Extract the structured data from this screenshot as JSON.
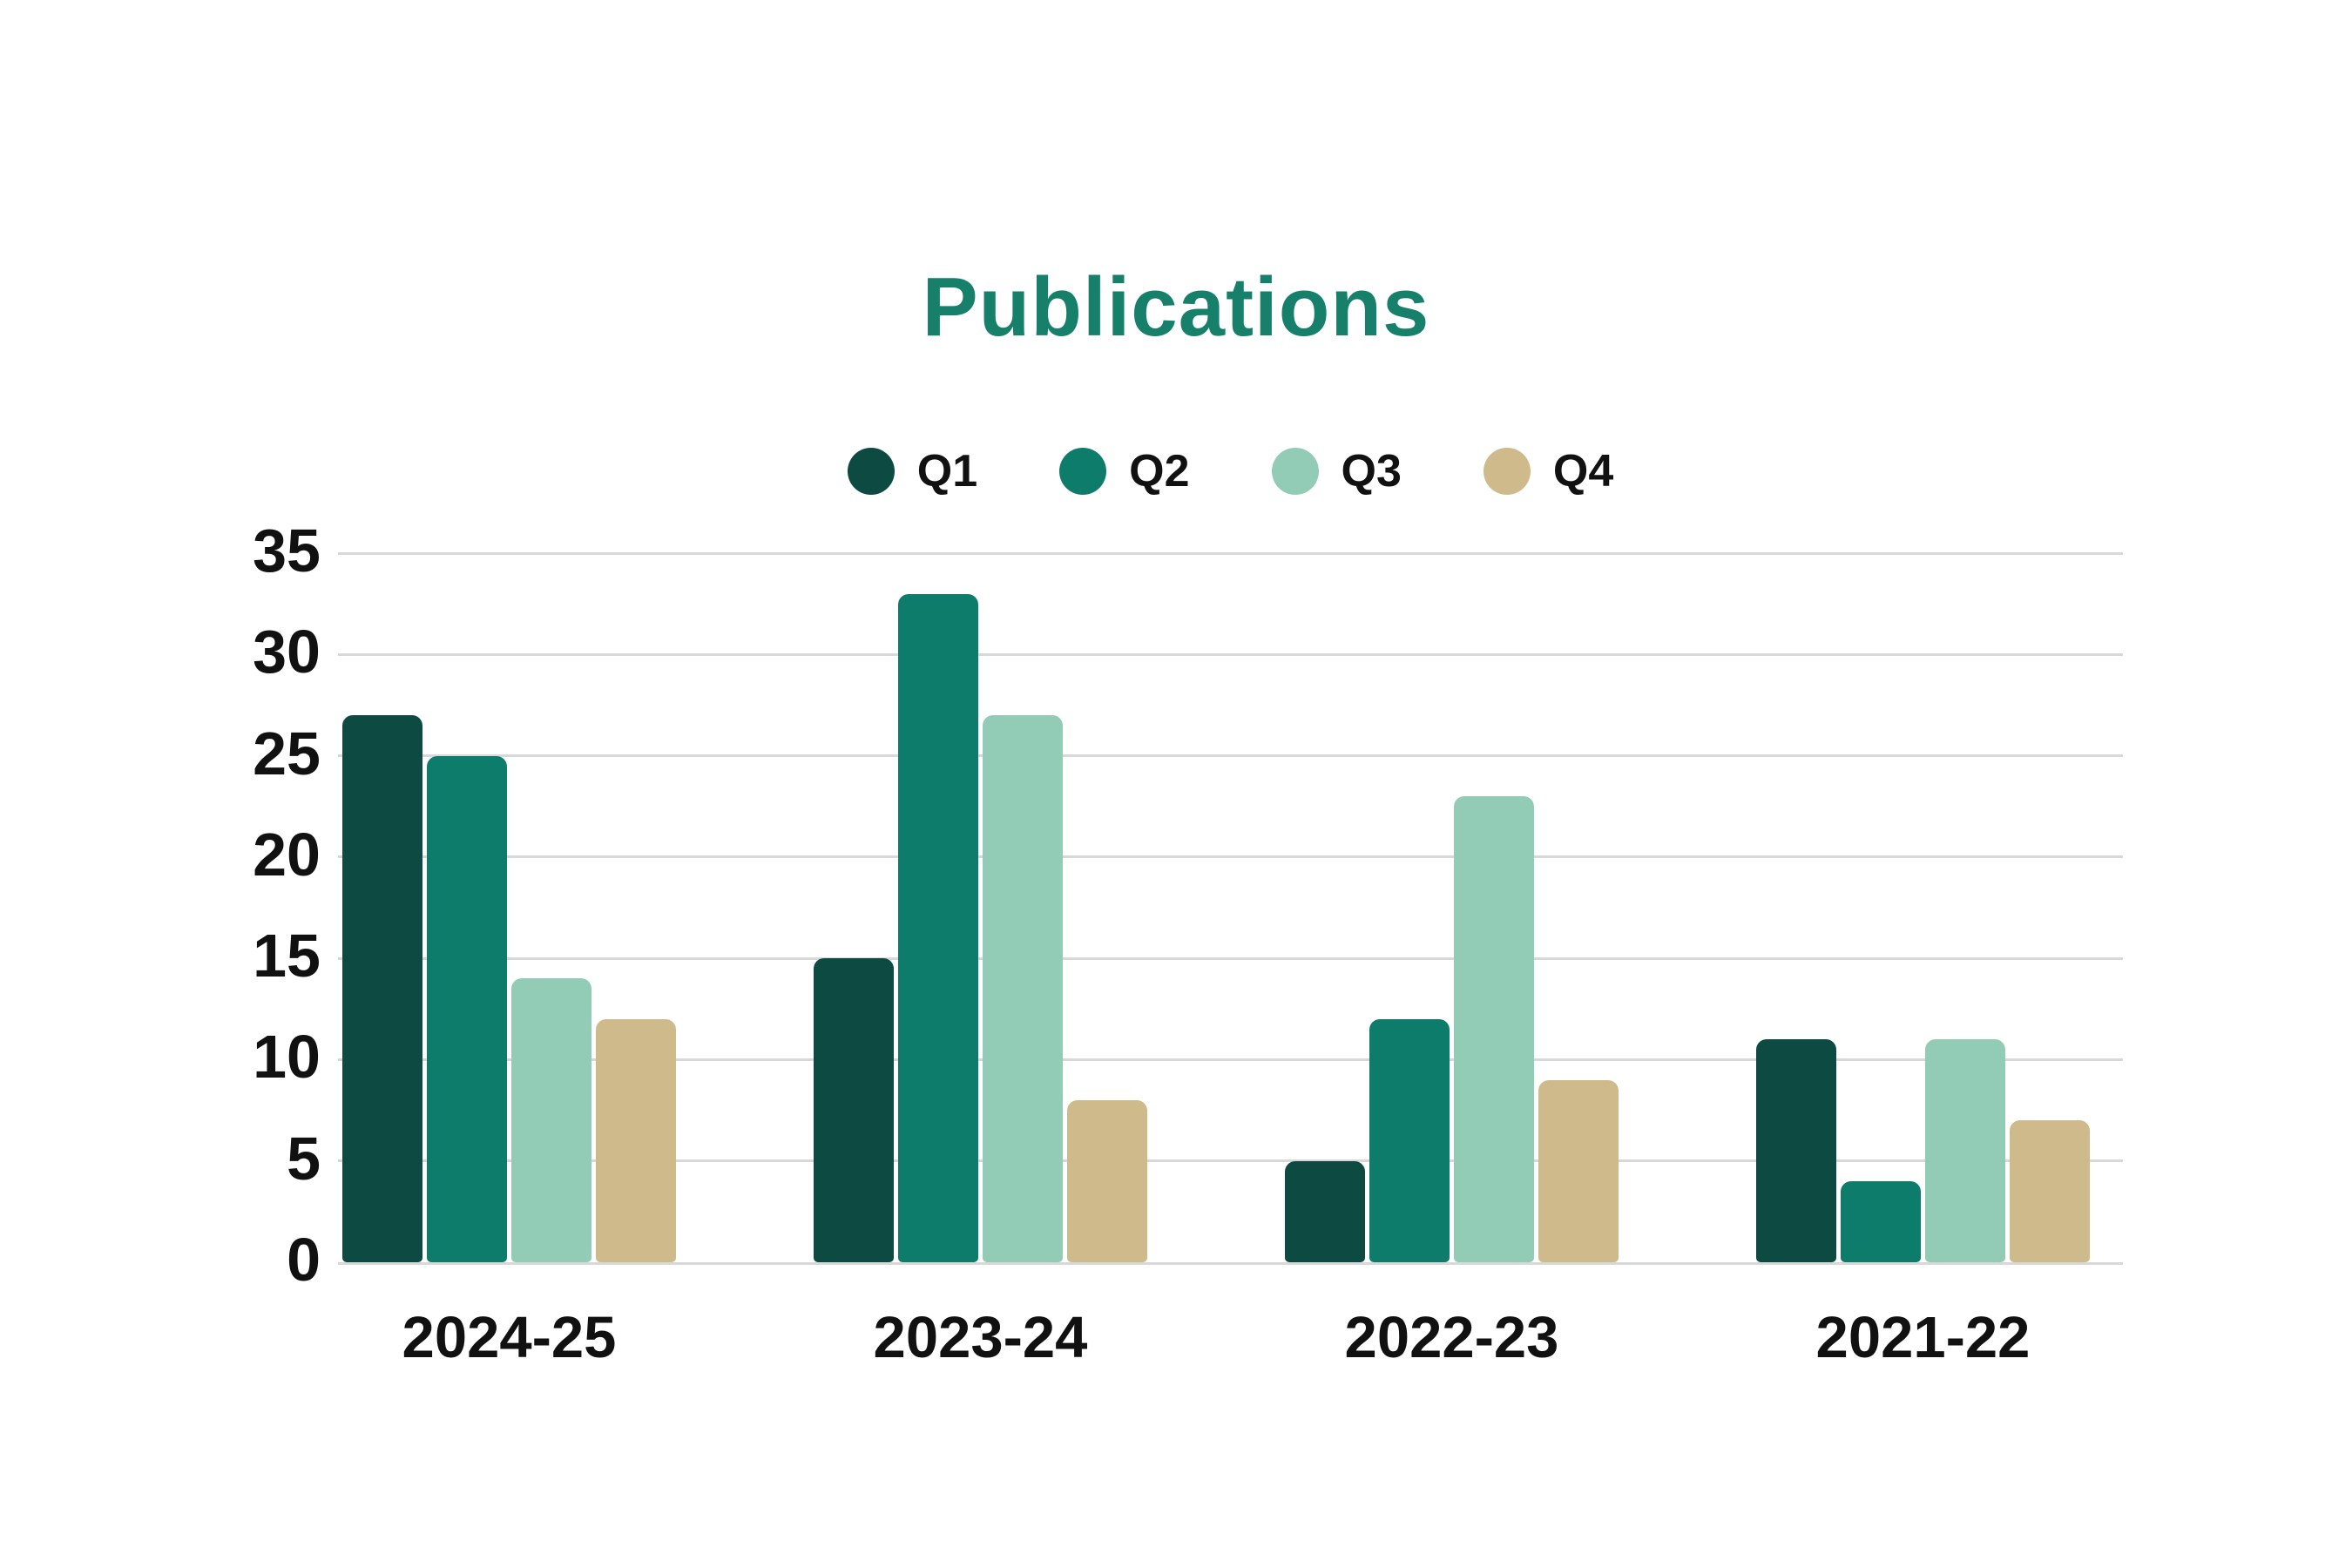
{
  "chart_data": {
    "type": "bar",
    "title": "Publications",
    "xlabel": "",
    "ylabel": "",
    "categories": [
      "2024-25",
      "2023-24",
      "2022-23",
      "2021-22"
    ],
    "series": [
      {
        "name": "Q1",
        "color": "#0d4b42",
        "values": [
          27,
          15,
          5,
          11
        ]
      },
      {
        "name": "Q2",
        "color": "#0e7c6a",
        "values": [
          25,
          33,
          12,
          4
        ]
      },
      {
        "name": "Q3",
        "color": "#93ccb6",
        "values": [
          14,
          27,
          23,
          11
        ]
      },
      {
        "name": "Q4",
        "color": "#cfba8b",
        "values": [
          12,
          8,
          9,
          7
        ]
      }
    ],
    "ylim": [
      0,
      35
    ],
    "yticks": [
      0,
      5,
      10,
      15,
      20,
      25,
      30,
      35
    ],
    "grid": true,
    "legend_position": "top"
  },
  "style": {
    "title_color": "#17806a",
    "text_color": "#111111",
    "gridline_color": "#d8d8d8",
    "background": "#ffffff"
  }
}
